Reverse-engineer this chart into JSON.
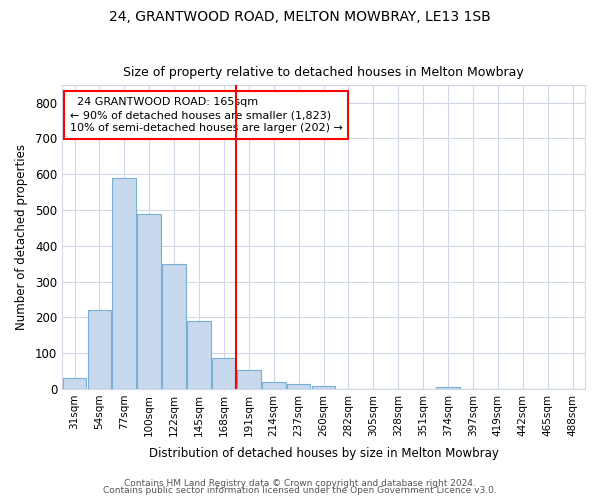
{
  "title1": "24, GRANTWOOD ROAD, MELTON MOWBRAY, LE13 1SB",
  "title2": "Size of property relative to detached houses in Melton Mowbray",
  "xlabel": "Distribution of detached houses by size in Melton Mowbray",
  "ylabel": "Number of detached properties",
  "bin_labels": [
    "31sqm",
    "54sqm",
    "77sqm",
    "100sqm",
    "122sqm",
    "145sqm",
    "168sqm",
    "191sqm",
    "214sqm",
    "237sqm",
    "260sqm",
    "282sqm",
    "305sqm",
    "328sqm",
    "351sqm",
    "374sqm",
    "397sqm",
    "419sqm",
    "442sqm",
    "465sqm",
    "488sqm"
  ],
  "bar_values": [
    30,
    220,
    590,
    490,
    350,
    190,
    85,
    52,
    18,
    14,
    7,
    0,
    0,
    0,
    0,
    5,
    0,
    0,
    0,
    0,
    0
  ],
  "bar_color": "#c8d8ed",
  "bar_edge_color": "#7aafd4",
  "property_line_x": 6.5,
  "property_line_label": "24 GRANTWOOD ROAD: 165sqm",
  "annotation_line1": "← 90% of detached houses are smaller (1,823)",
  "annotation_line2": "10% of semi-detached houses are larger (202) →",
  "annotation_box_color": "white",
  "annotation_box_edge": "red",
  "vline_color": "red",
  "ylim": [
    0,
    850
  ],
  "yticks": [
    0,
    100,
    200,
    300,
    400,
    500,
    600,
    700,
    800
  ],
  "footer1": "Contains HM Land Registry data © Crown copyright and database right 2024.",
  "footer2": "Contains public sector information licensed under the Open Government Licence v3.0.",
  "plot_bg_color": "#ffffff",
  "fig_bg_color": "#ffffff",
  "grid_color": "#d0d8e8",
  "title_fontsize": 10,
  "subtitle_fontsize": 9
}
